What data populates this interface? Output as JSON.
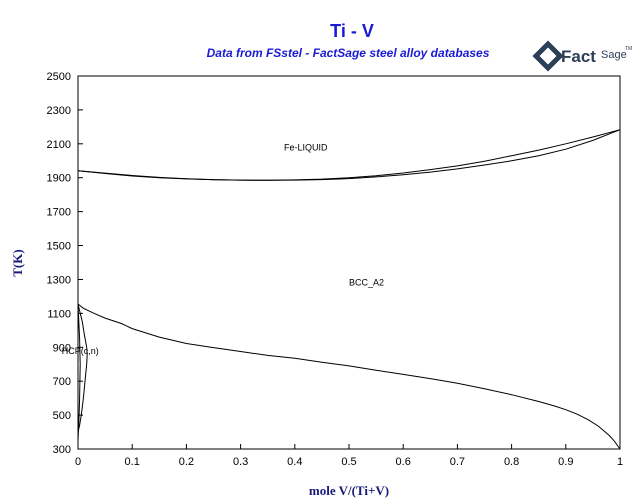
{
  "logo": {
    "word1": "Fact",
    "word2": "Sage",
    "mark": "TM"
  },
  "chart_data": {
    "type": "line",
    "title": "Ti - V",
    "subtitle": "Data from FSstel - FactSage steel alloy databases",
    "xlabel": "mole V/(Ti+V)",
    "ylabel": "T(K)",
    "xlim": [
      0,
      1
    ],
    "ylim": [
      300,
      2500
    ],
    "xticks": [
      "0",
      "0.1",
      "0.2",
      "0.3",
      "0.4",
      "0.5",
      "0.6",
      "0.7",
      "0.8",
      "0.9",
      "1"
    ],
    "yticks": [
      "300",
      "500",
      "700",
      "900",
      "1100",
      "1300",
      "1500",
      "1700",
      "1900",
      "2100",
      "2300",
      "2500"
    ],
    "grid": false,
    "region_labels": [
      {
        "text": "Fe-LIQUID",
        "x": 0.38,
        "y": 2060
      },
      {
        "text": "BCC_A2",
        "x": 0.5,
        "y": 1265
      },
      {
        "text": "HCP(c,n)",
        "x": -0.03,
        "y": 860
      }
    ],
    "series": [
      {
        "x": [
          0,
          0.05,
          0.1,
          0.15,
          0.2,
          0.25,
          0.3,
          0.35,
          0.4,
          0.45,
          0.5,
          0.55,
          0.6,
          0.65,
          0.7,
          0.75,
          0.8,
          0.85,
          0.9,
          0.95,
          1.0
        ],
        "y": [
          1941,
          1925,
          1910,
          1900,
          1893,
          1888,
          1886,
          1885,
          1887,
          1892,
          1900,
          1912,
          1928,
          1948,
          1970,
          1997,
          2030,
          2063,
          2100,
          2140,
          2183
        ]
      },
      {
        "x": [
          0,
          0.05,
          0.1,
          0.15,
          0.2,
          0.25,
          0.3,
          0.35,
          0.4,
          0.45,
          0.5,
          0.55,
          0.6,
          0.65,
          0.7,
          0.75,
          0.8,
          0.85,
          0.9,
          0.95,
          1.0
        ],
        "y": [
          1941,
          1927,
          1913,
          1902,
          1894,
          1889,
          1886,
          1885,
          1886,
          1889,
          1895,
          1905,
          1917,
          1933,
          1952,
          1975,
          2000,
          2030,
          2068,
          2120,
          2183
        ]
      },
      {
        "x": [
          0,
          0.01,
          0.03,
          0.05,
          0.08,
          0.1,
          0.15,
          0.2,
          0.25,
          0.3,
          0.35,
          0.4,
          0.45,
          0.5,
          0.55,
          0.6,
          0.65,
          0.7,
          0.75,
          0.8,
          0.85,
          0.88,
          0.9,
          0.92,
          0.94,
          0.96,
          0.98,
          0.99,
          1.0
        ],
        "y": [
          1155,
          1130,
          1100,
          1072,
          1040,
          1010,
          960,
          922,
          898,
          875,
          852,
          835,
          812,
          790,
          765,
          740,
          715,
          688,
          655,
          620,
          580,
          553,
          532,
          507,
          475,
          435,
          380,
          345,
          300
        ]
      },
      {
        "x": [
          0,
          0.008,
          0.012,
          0.016,
          0.017,
          0.016,
          0.013,
          0.01,
          0.006,
          0.003,
          0
        ],
        "y": [
          1155,
          1050,
          970,
          900,
          860,
          800,
          700,
          600,
          500,
          440,
          400
        ]
      },
      {
        "x": [
          0,
          0.003,
          0.004,
          0.003,
          0.002,
          0.001,
          0
        ],
        "y": [
          1155,
          950,
          800,
          600,
          500,
          420,
          350
        ]
      }
    ]
  }
}
